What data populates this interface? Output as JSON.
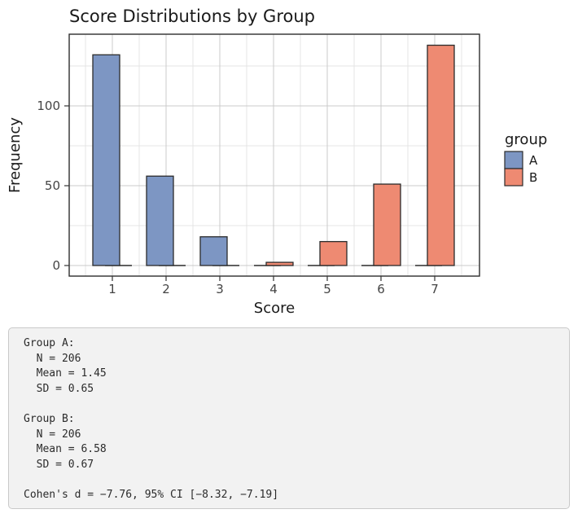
{
  "figure": {
    "title": "Score Distributions by Group"
  },
  "chart_data": {
    "type": "bar",
    "title": "Score Distributions by Group",
    "xlabel": "Score",
    "ylabel": "Frequency",
    "categories": [
      "1",
      "2",
      "3",
      "4",
      "5",
      "6",
      "7"
    ],
    "series": [
      {
        "name": "A",
        "color": "#7D96C3",
        "values": [
          132,
          56,
          18,
          0,
          0,
          0,
          0
        ]
      },
      {
        "name": "B",
        "color": "#EE8A72",
        "values": [
          0,
          0,
          0,
          2,
          15,
          51,
          138
        ]
      }
    ],
    "bar_layout": "dodge",
    "bar_edge_color": "#2B2B2B",
    "yticks": [
      0,
      50,
      100
    ],
    "ylim": [
      0,
      145
    ],
    "grid": "major+minor",
    "legend_position": "right"
  },
  "legend": {
    "title": "group",
    "items": [
      {
        "label": "A",
        "color": "#7D96C3"
      },
      {
        "label": "B",
        "color": "#EE8A72"
      }
    ]
  },
  "stats_panel": {
    "lines": [
      "Group A:",
      "  N = 206",
      "  Mean = 1.45",
      "  SD = 0.65",
      "",
      "Group B:",
      "  N = 206",
      "  Mean = 6.58",
      "  SD = 0.67",
      "",
      "Cohen's d = −7.76, 95% CI [−8.32, −7.19]"
    ]
  },
  "colors": {
    "panel_border": "#2E2E2E",
    "grid_major": "#CBCBCB",
    "grid_minor": "#E4E4E4",
    "tick_mark": "#333333",
    "stats_bg": "#F2F2F2",
    "stats_border": "#C9C9C9"
  }
}
